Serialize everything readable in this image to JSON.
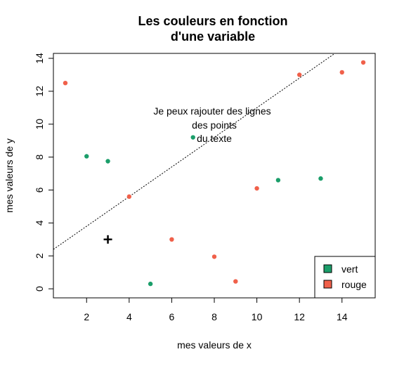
{
  "chart_data": {
    "type": "scatter",
    "title_lines": [
      "Les couleurs en fonction",
      "d'une variable"
    ],
    "xlabel": "mes valeurs de x",
    "ylabel": "mes valeurs de y",
    "xlim": [
      0.44,
      15.56
    ],
    "ylim": [
      -0.55,
      14.3
    ],
    "xticks": [
      2,
      4,
      6,
      8,
      10,
      12,
      14
    ],
    "yticks": [
      0,
      2,
      4,
      6,
      8,
      10,
      12,
      14
    ],
    "series": [
      {
        "name": "vert",
        "color": "#1b9e6a",
        "x": [
          2,
          3,
          5,
          7,
          11,
          13
        ],
        "y": [
          8.05,
          7.75,
          0.3,
          9.2,
          6.6,
          6.7
        ]
      },
      {
        "name": "rouge",
        "color": "#f0604a",
        "x": [
          1,
          4,
          6,
          8,
          9,
          10,
          12,
          14,
          15
        ],
        "y": [
          12.5,
          5.6,
          3.0,
          1.95,
          0.45,
          6.1,
          13.0,
          13.15,
          13.75
        ]
      }
    ],
    "annotation_lines": [
      "Je peux rajouter des lignes",
      "des points",
      "du texte"
    ],
    "annotation_anchor": {
      "x": 8,
      "y": 10.5
    },
    "dotted_line": {
      "intercept": 2.0,
      "slope": 0.9
    },
    "cross_point": {
      "x": 3,
      "y": 3
    },
    "legend": {
      "position": "bottom-right",
      "entries": [
        {
          "label": "vert",
          "color": "#1b9e6a"
        },
        {
          "label": "rouge",
          "color": "#f0604a"
        }
      ]
    },
    "grid": false
  }
}
